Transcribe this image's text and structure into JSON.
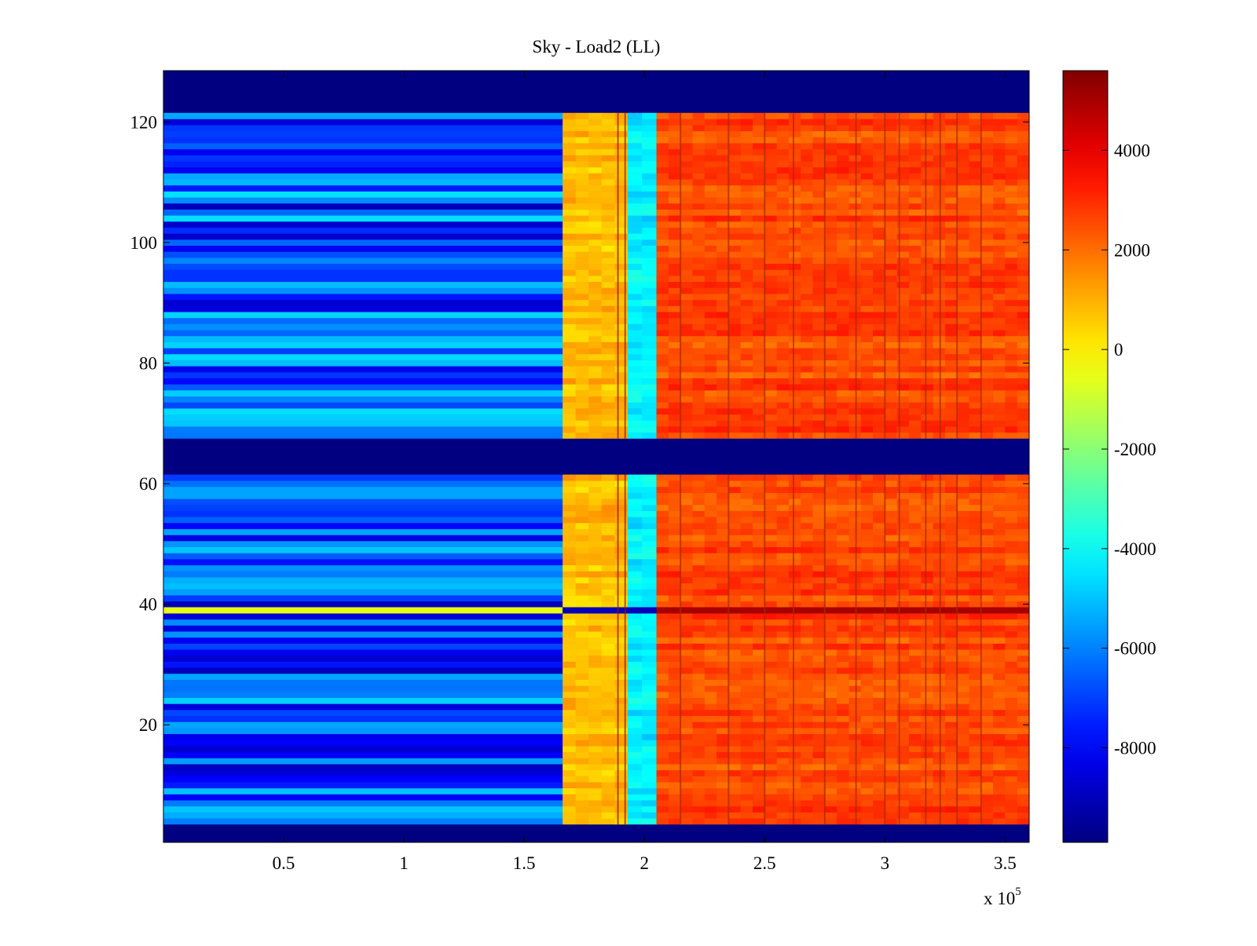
{
  "chart_data": {
    "type": "heatmap",
    "title": "Sky - Load2 (LL)",
    "xlabel": "",
    "ylabel": "",
    "x_multiplier_label": "x 10",
    "x_multiplier_exponent": "5",
    "xlim": [
      0,
      3.6
    ],
    "ylim": [
      0.5,
      128.5
    ],
    "x_ticks": [
      0.5,
      1,
      1.5,
      2,
      2.5,
      3,
      3.5
    ],
    "x_tick_labels": [
      "0.5",
      "1",
      "1.5",
      "2",
      "2.5",
      "3",
      "3.5"
    ],
    "y_ticks": [
      20,
      40,
      60,
      80,
      100,
      120
    ],
    "y_tick_labels": [
      "20",
      "40",
      "60",
      "80",
      "100",
      "120"
    ],
    "colorbar": {
      "colormap": "jet",
      "clim": [
        -9900,
        5600
      ],
      "ticks": [
        -8000,
        -6000,
        -4000,
        -2000,
        0,
        2000,
        4000
      ],
      "tick_labels": [
        "-8000",
        "-6000",
        "-4000",
        "-2000",
        "0",
        "2000",
        "4000"
      ]
    },
    "grid": false,
    "empty_rows": [
      [
        1,
        3
      ],
      [
        62,
        67
      ],
      [
        122,
        128
      ]
    ],
    "regions": [
      {
        "x_range": [
          0.0,
          1.66
        ],
        "value_range": [
          -9000,
          -4500
        ],
        "note": "rows alternate between dark-blue and cyan bands"
      },
      {
        "x_range": [
          1.66,
          1.93
        ],
        "value": 800
      },
      {
        "x_range": [
          1.93,
          2.05
        ],
        "value": -4300
      },
      {
        "x_range": [
          2.05,
          3.6
        ],
        "value": 2600
      }
    ],
    "anomaly_row": {
      "row": 39,
      "values": [
        {
          "x_range": [
            0.0,
            1.66
          ],
          "value": -500
        },
        {
          "x_range": [
            1.66,
            2.05
          ],
          "value": -9000
        },
        {
          "x_range": [
            2.05,
            3.6
          ],
          "value": 5000
        }
      ]
    }
  }
}
